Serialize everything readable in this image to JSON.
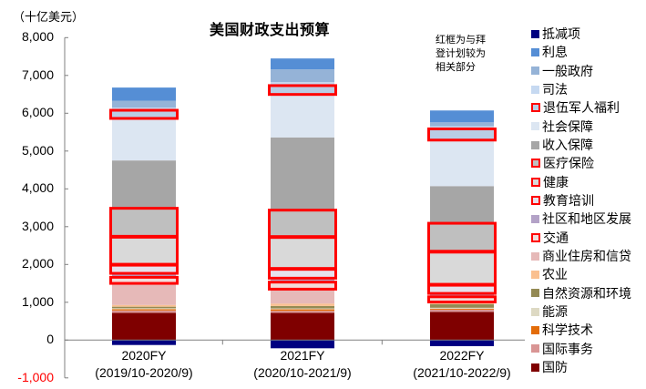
{
  "chart_data": {
    "type": "bar",
    "stacked": true,
    "title": "美国财政支出预算",
    "ylabel": "（十亿美元）",
    "xlabel": "",
    "ylim": [
      -1000,
      8000
    ],
    "yticks": [
      "8,000",
      "7,000",
      "6,000",
      "5,000",
      "4,000",
      "3,000",
      "2,000",
      "1,000",
      "0",
      "-1,000"
    ],
    "ytick_values": [
      8000,
      7000,
      6000,
      5000,
      4000,
      3000,
      2000,
      1000,
      0,
      -1000
    ],
    "annotation": "红框为与拜登计划较为相关部分",
    "annotation_lines": [
      "红框为与拜",
      "登计划较为",
      "相关部分"
    ],
    "categories": [
      "2020FY",
      "2021FY",
      "2022FY"
    ],
    "category_sublabels": [
      "(2019/10-2020/9)",
      "(2020/10-2021/9)",
      "(2021/10-2022/9)"
    ],
    "legend_position": "right",
    "grid": false,
    "series": [
      {
        "name": "国防",
        "color": "#7f0000",
        "highlighted": false,
        "values": [
          723,
          723,
          747
        ]
      },
      {
        "name": "国际事务",
        "color": "#d99594",
        "highlighted": false,
        "values": [
          60,
          50,
          58
        ]
      },
      {
        "name": "科学技术",
        "color": "#e36c09",
        "highlighted": false,
        "values": [
          35,
          40,
          25
        ]
      },
      {
        "name": "能源",
        "color": "#ddd9c3",
        "highlighted": false,
        "values": [
          25,
          25,
          25
        ]
      },
      {
        "name": "自然资源和环境",
        "color": "#948a54",
        "highlighted": false,
        "values": [
          40,
          63,
          96
        ]
      },
      {
        "name": "农业",
        "color": "#fac090",
        "highlighted": false,
        "values": [
          45,
          65,
          25
        ]
      },
      {
        "name": "商业住房和信贷",
        "color": "#e6b9b8",
        "highlighted": false,
        "values": [
          560,
          369,
          20
        ]
      },
      {
        "name": "交通",
        "color": "#f2dcdb",
        "highlighted": true,
        "values": [
          185,
          210,
          161
        ]
      },
      {
        "name": "社区和地区发展",
        "color": "#b3a2c7",
        "highlighted": false,
        "values": [
          80,
          80,
          65
        ]
      },
      {
        "name": "教育培训",
        "color": "#e6e0ec",
        "highlighted": true,
        "values": [
          240,
          258,
          241
        ]
      },
      {
        "name": "健康",
        "color": "#d9d9d9",
        "highlighted": true,
        "values": [
          740,
          843,
          875
        ]
      },
      {
        "name": "医疗保险",
        "color": "#bfbfbf",
        "highlighted": true,
        "values": [
          765,
          723,
          764
        ]
      },
      {
        "name": "收入保障",
        "color": "#a6a6a6",
        "highlighted": false,
        "values": [
          1253,
          1911,
          971
        ]
      },
      {
        "name": "社会保障",
        "color": "#dce6f2",
        "highlighted": false,
        "values": [
          1100,
          1125,
          1205
        ]
      },
      {
        "name": "退伍军人福利",
        "color": "#b9cde5",
        "highlighted": true,
        "values": [
          240,
          258,
          320
        ]
      },
      {
        "name": "司法",
        "color": "#c6d9f1",
        "highlighted": false,
        "values": [
          58,
          80,
          58
        ]
      },
      {
        "name": "一般政府",
        "color": "#95b3d7",
        "highlighted": false,
        "values": [
          183,
          337,
          104
        ]
      },
      {
        "name": "利息",
        "color": "#558ed5",
        "highlighted": false,
        "values": [
          347,
          289,
          313
        ]
      },
      {
        "name": "抵减项",
        "color": "#000080",
        "highlighted": false,
        "values": [
          -130,
          -217,
          -160
        ]
      }
    ],
    "legend_order": [
      "抵减项",
      "利息",
      "一般政府",
      "司法",
      "退伍军人福利",
      "社会保障",
      "收入保障",
      "医疗保险",
      "健康",
      "教育培训",
      "社区和地区发展",
      "交通",
      "商业住房和信贷",
      "农业",
      "自然资源和环境",
      "能源",
      "科学技术",
      "国际事务",
      "国防"
    ],
    "colors": {
      "highlight_box": "#ff0000",
      "axis": "#808080",
      "negative_tick": "#ff0000"
    }
  }
}
